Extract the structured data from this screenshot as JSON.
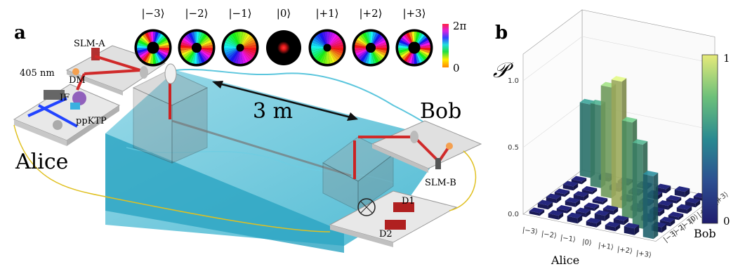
{
  "panel_a": {
    "letter": "a",
    "mode_labels": [
      "|−3⟩",
      "|−2⟩",
      "|−1⟩",
      "|0⟩",
      "|+1⟩",
      "|+2⟩",
      "|+3⟩"
    ],
    "phase_bar_top": "2π",
    "phase_bar_bottom": "0",
    "slm_a": "SLM-A",
    "slm_b": "SLM-B",
    "laser": "405 nm",
    "dm": "DM",
    "if": "IF",
    "crystal": "ppKTP",
    "alice": "Alice",
    "bob": "Bob",
    "distance": "3 m",
    "d1": "D1",
    "d2": "D2"
  },
  "panel_b": {
    "letter": "b",
    "z_symbol": "𝒫",
    "colorbar_top": "1",
    "colorbar_bottom": "0",
    "xlabel": "Alice",
    "ylabel": "Bob"
  },
  "chart_data": {
    "type": "bar3d",
    "title": "",
    "zlabel": "𝒫",
    "xlabel": "Alice",
    "ylabel": "Bob",
    "x_categories": [
      "|−3⟩",
      "|−2⟩",
      "|−1⟩",
      "|0⟩",
      "|+1⟩",
      "|+2⟩",
      "|+3⟩"
    ],
    "y_categories": [
      "|−3⟩",
      "|−2⟩",
      "|−1⟩",
      "|0⟩",
      "|+1⟩",
      "|+2⟩",
      "|+3⟩"
    ],
    "z_ticks": [
      "0.0",
      "0.5",
      "1.0"
    ],
    "zlim": [
      0,
      1
    ],
    "colorbar": [
      0,
      1
    ],
    "matrix": [
      [
        0.02,
        0.03,
        0.04,
        0.03,
        0.03,
        0.05,
        0.47
      ],
      [
        0.03,
        0.02,
        0.03,
        0.04,
        0.03,
        0.63,
        0.04
      ],
      [
        0.03,
        0.03,
        0.02,
        0.03,
        0.72,
        0.03,
        0.03
      ],
      [
        0.02,
        0.03,
        0.02,
        0.95,
        0.03,
        0.03,
        0.02
      ],
      [
        0.03,
        0.02,
        0.83,
        0.02,
        0.02,
        0.03,
        0.03
      ],
      [
        0.02,
        0.62,
        0.03,
        0.02,
        0.03,
        0.02,
        0.03
      ],
      [
        0.55,
        0.03,
        0.02,
        0.02,
        0.03,
        0.04,
        0.02
      ]
    ]
  }
}
